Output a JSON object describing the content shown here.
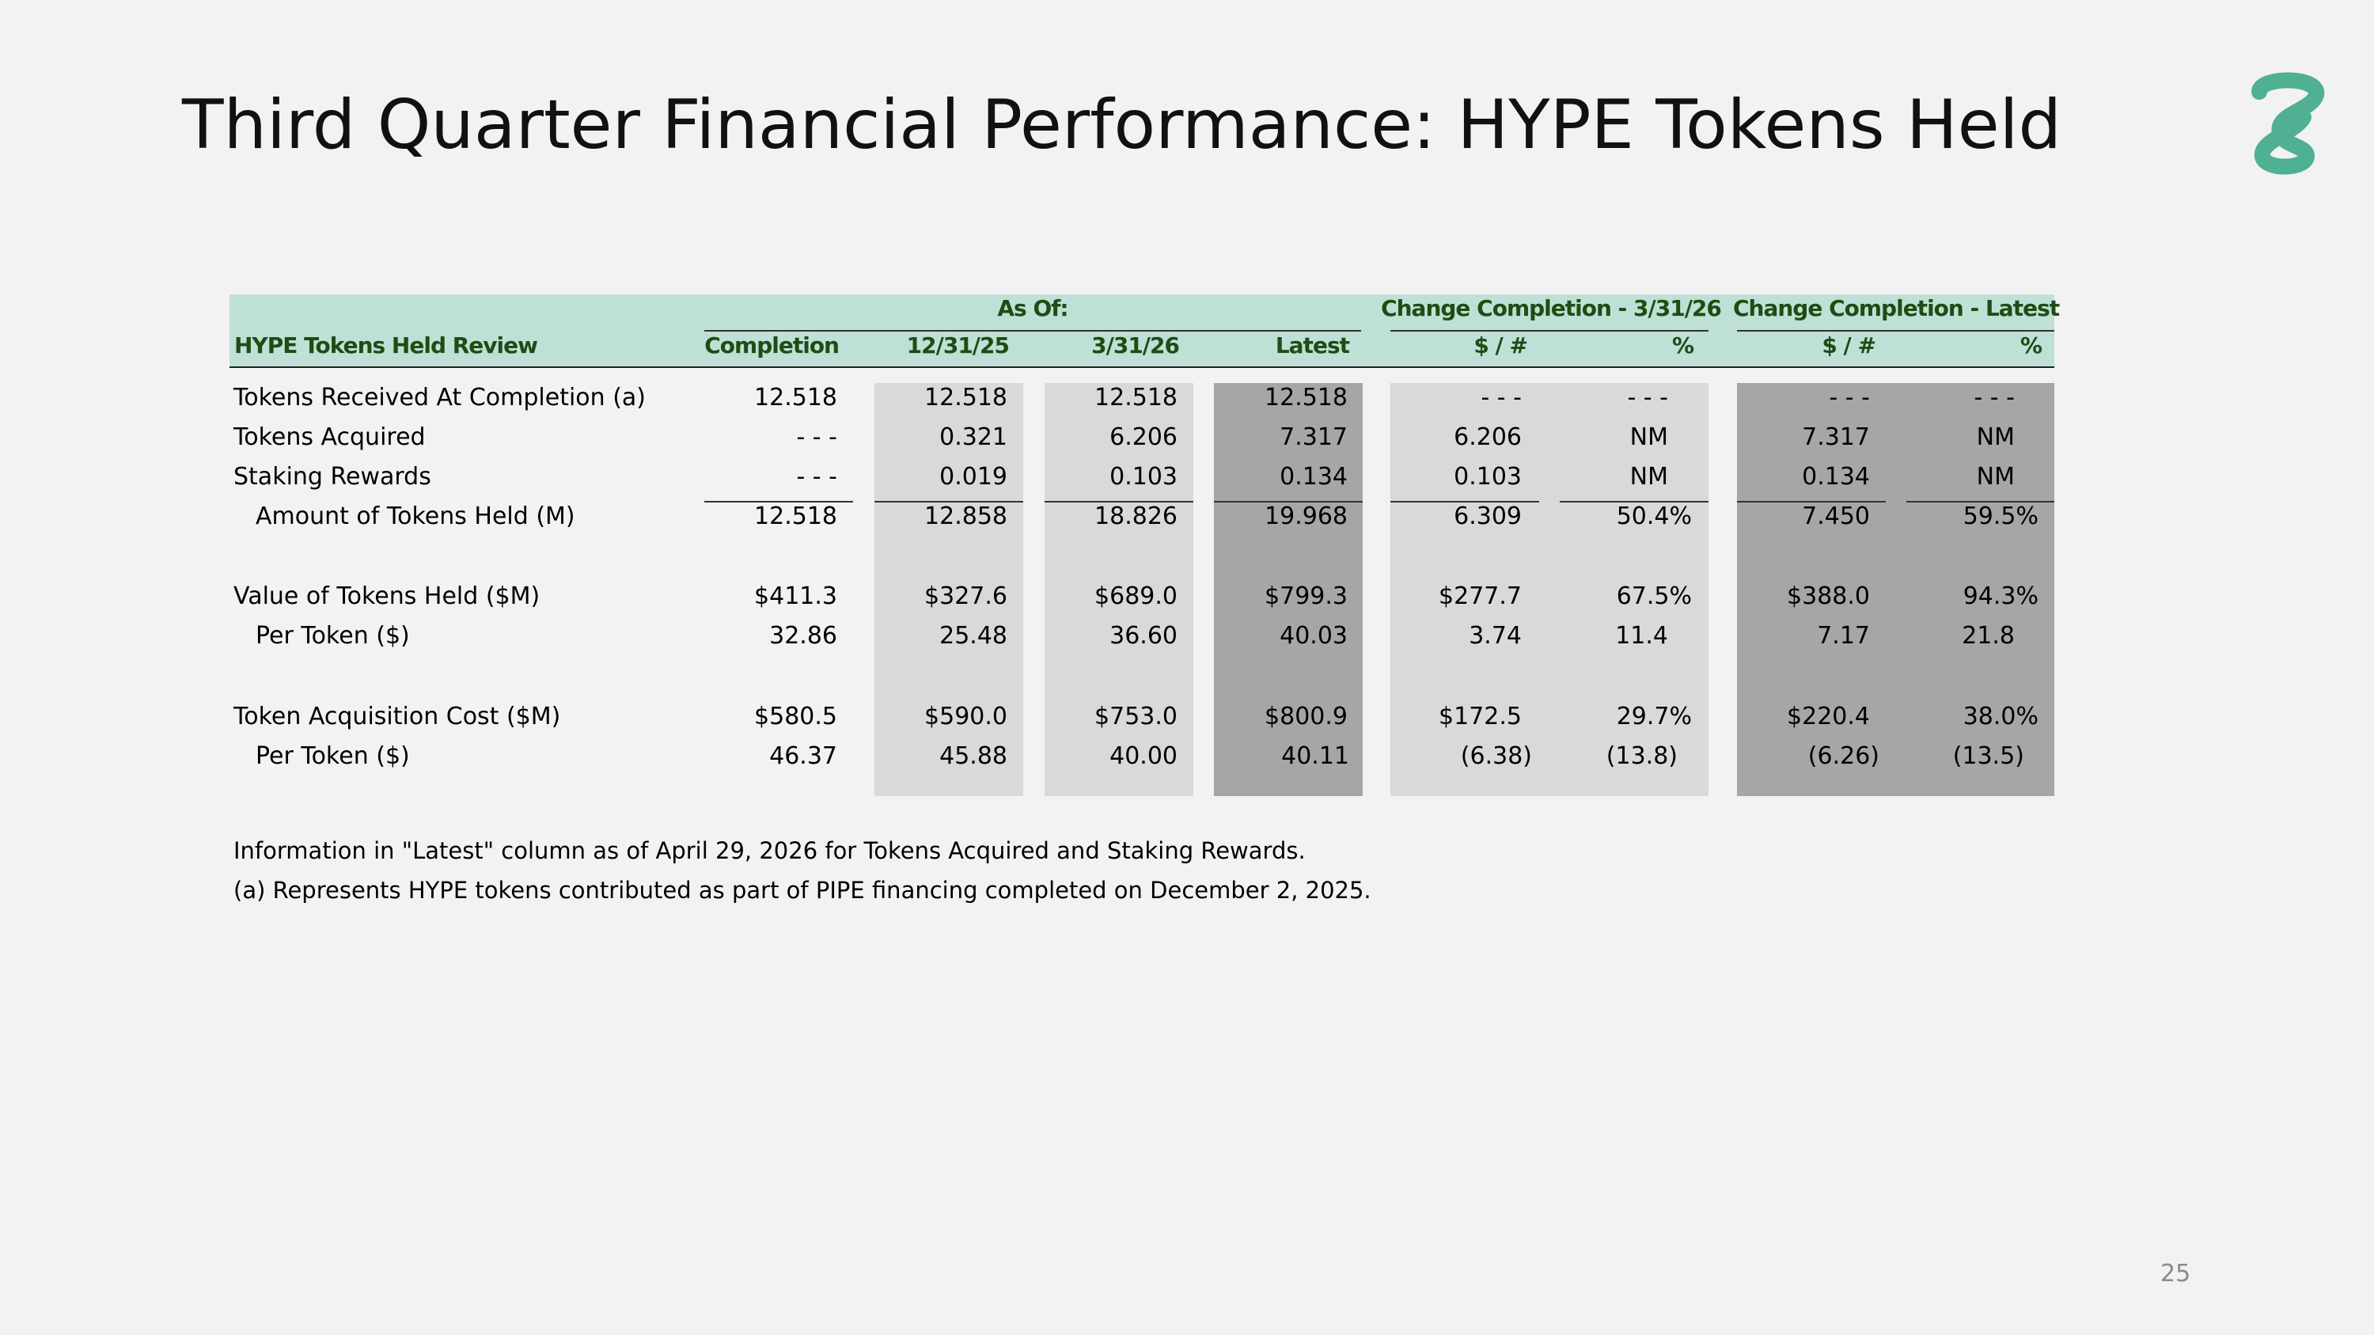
{
  "title": "Third Quarter Financial Performance: HYPE Tokens Held",
  "page_number": "25",
  "brand": {
    "accent": "#4fb093",
    "header_fill": "#bfe0d6",
    "header_text": "#1e4d14",
    "shade_light": "#d9d9d9",
    "shade_dark": "#a6a6a6"
  },
  "table": {
    "group_headers": {
      "as_of": "As Of:",
      "change_3_31_26": "Change Completion - 3/31/26",
      "change_latest": "Change Completion - Latest"
    },
    "column_headers": {
      "label": "HYPE Tokens Held Review",
      "completion": "Completion",
      "d12_31_25": "12/31/25",
      "d3_31_26": "3/31/26",
      "latest": "Latest",
      "chg1_abs": "$ / #",
      "chg1_pct": "%",
      "chg2_abs": "$ / #",
      "chg2_pct": "%"
    },
    "rows": [
      {
        "label": "Tokens Received At Completion (a)",
        "values": [
          "12.518",
          "12.518",
          "12.518",
          "12.518",
          "- - -",
          "- - -",
          "- - -",
          "- - -"
        ]
      },
      {
        "label": "Tokens Acquired",
        "values": [
          "- - -",
          "0.321",
          "6.206",
          "7.317",
          "6.206",
          "NM",
          "7.317",
          "NM"
        ]
      },
      {
        "label": "Staking Rewards",
        "values": [
          "- - -",
          "0.019",
          "0.103",
          "0.134",
          "0.103",
          "NM",
          "0.134",
          "NM"
        ]
      },
      {
        "label": "Amount of Tokens Held (M)",
        "values": [
          "12.518",
          "12.858",
          "18.826",
          "19.968",
          "6.309",
          "50.4%",
          "7.450",
          "59.5%"
        ]
      },
      {
        "label": "Value of Tokens Held ($M)",
        "values": [
          "$411.3",
          "$327.6",
          "$689.0",
          "$799.3",
          "$277.7",
          "67.5%",
          "$388.0",
          "94.3%"
        ]
      },
      {
        "label": "Per Token ($)",
        "values": [
          "32.86",
          "25.48",
          "36.60",
          "40.03",
          "3.74",
          "11.4",
          "7.17",
          "21.8"
        ]
      },
      {
        "label": "Token Acquisition Cost ($M)",
        "values": [
          "$580.5",
          "$590.0",
          "$753.0",
          "$800.9",
          "$172.5",
          "29.7%",
          "$220.4",
          "38.0%"
        ]
      },
      {
        "label": "Per Token ($)",
        "values": [
          "46.37",
          "45.88",
          "40.00",
          "40.11",
          "(6.38)",
          "(13.8)",
          "(6.26)",
          "(13.5)"
        ]
      }
    ]
  },
  "notes": {
    "note1": "Information in \"Latest\" column as of April 29, 2026 for Tokens Acquired and Staking Rewards.",
    "note2": "(a)  Represents HYPE tokens contributed as part of PIPE financing completed on December 2, 2025."
  }
}
